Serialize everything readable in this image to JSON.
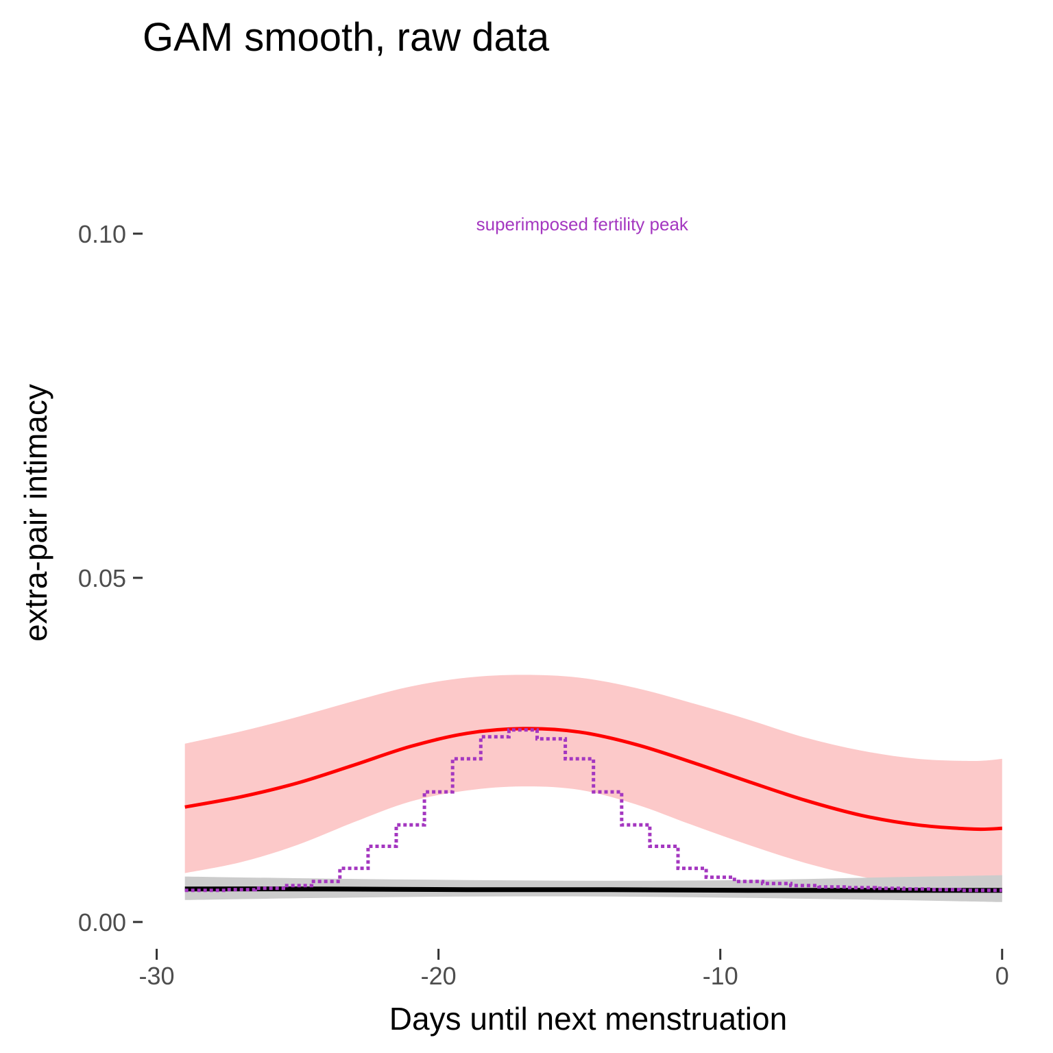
{
  "chart_data": {
    "type": "line",
    "title": "GAM smooth, raw data",
    "xlabel": "Days until next menstruation",
    "ylabel": "extra-pair intimacy",
    "xlim": [
      -30.5,
      0.2
    ],
    "ylim": [
      -0.0025,
      0.121
    ],
    "x_ticks": [
      -30,
      -20,
      -10,
      0
    ],
    "x_tick_labels": [
      "-30",
      "-20",
      "-10",
      "0"
    ],
    "y_ticks": [
      0.0,
      0.05,
      0.1
    ],
    "y_tick_labels": [
      "0.00",
      "0.05",
      "0.10"
    ],
    "grid": false,
    "legend": "none",
    "annotation": {
      "text": "superimposed fertility peak",
      "x": -14.9,
      "y": 0.1005,
      "color": "#a437c0"
    },
    "series": [
      {
        "style": "solid",
        "color": "#ff0000",
        "band_color": "#fcc9c9",
        "x": [
          -29,
          -27,
          -25,
          -23,
          -21,
          -19,
          -17,
          -15,
          -13,
          -11,
          -9,
          -7,
          -5,
          -3,
          -1,
          0
        ],
        "y": [
          0.0167,
          0.0182,
          0.0202,
          0.0228,
          0.0255,
          0.0274,
          0.0281,
          0.0276,
          0.0258,
          0.0232,
          0.0204,
          0.0177,
          0.0155,
          0.0141,
          0.0135,
          0.0136
        ],
        "lower": [
          0.0071,
          0.0087,
          0.0112,
          0.0145,
          0.0175,
          0.0191,
          0.0197,
          0.0192,
          0.0171,
          0.0141,
          0.0112,
          0.0086,
          0.0066,
          0.0053,
          0.0051,
          0.005
        ],
        "upper": [
          0.0259,
          0.0277,
          0.0298,
          0.0321,
          0.0342,
          0.0355,
          0.0359,
          0.0355,
          0.034,
          0.0318,
          0.0294,
          0.0268,
          0.0249,
          0.0237,
          0.0234,
          0.0237
        ]
      },
      {
        "style": "solid",
        "color": "#000000",
        "band_color": "#cccccc",
        "x": [
          -29,
          -24,
          -19,
          -14,
          -9,
          -4,
          0
        ],
        "y": [
          0.0048,
          0.0048,
          0.0047,
          0.0047,
          0.0046,
          0.0046,
          0.0046
        ],
        "lower": [
          0.0032,
          0.0035,
          0.0037,
          0.0037,
          0.0035,
          0.0032,
          0.0029
        ],
        "upper": [
          0.0066,
          0.0063,
          0.0061,
          0.006,
          0.0061,
          0.0065,
          0.0068
        ]
      },
      {
        "style": "dotted-step",
        "color": "#a437c0",
        "x": [
          -29,
          -28,
          -27,
          -26,
          -25,
          -24,
          -23,
          -22,
          -21,
          -20,
          -19,
          -18,
          -17,
          -16,
          -15,
          -14,
          -13,
          -12,
          -11,
          -10,
          -9,
          -8,
          -7,
          -6,
          -5,
          -4,
          -3,
          -2,
          -1,
          0
        ],
        "y": [
          0.0046,
          0.0046,
          0.0047,
          0.0049,
          0.0053,
          0.0059,
          0.0078,
          0.011,
          0.0141,
          0.0189,
          0.0237,
          0.0269,
          0.0279,
          0.0266,
          0.0237,
          0.0189,
          0.0141,
          0.011,
          0.0078,
          0.0065,
          0.0059,
          0.0056,
          0.0053,
          0.0051,
          0.005,
          0.0049,
          0.0048,
          0.0047,
          0.0046,
          0.0046
        ]
      }
    ]
  }
}
